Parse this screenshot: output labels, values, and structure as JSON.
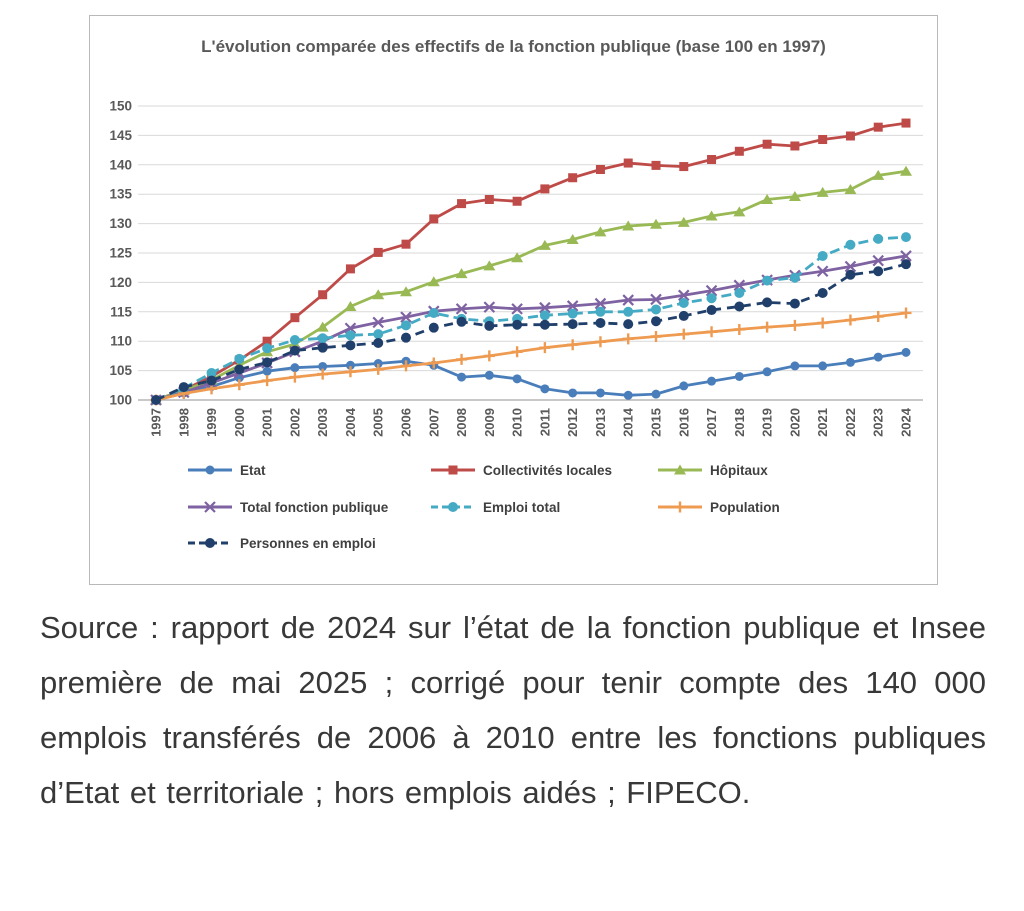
{
  "chart_data": {
    "type": "line",
    "title": "L'évolution comparée des effectifs de la fonction publique (base 100 en 1997)",
    "x": [
      1997,
      1998,
      1999,
      2000,
      2001,
      2002,
      2003,
      2004,
      2005,
      2006,
      2007,
      2008,
      2009,
      2010,
      2011,
      2012,
      2013,
      2014,
      2015,
      2016,
      2017,
      2018,
      2019,
      2020,
      2021,
      2022,
      2023,
      2024
    ],
    "ylim": [
      100,
      150
    ],
    "y_ticks": [
      100,
      105,
      110,
      115,
      120,
      125,
      130,
      135,
      140,
      145,
      150
    ],
    "grid": true,
    "legend_position": "bottom",
    "series": [
      {
        "id": "etat",
        "name": "Etat",
        "color": "#4a7ebb",
        "marker": "circle",
        "dash": null,
        "values": [
          100,
          101.2,
          102.3,
          103.8,
          104.9,
          105.5,
          105.7,
          105.9,
          106.2,
          106.6,
          105.9,
          103.9,
          104.2,
          103.6,
          101.9,
          101.2,
          101.2,
          100.8,
          101.0,
          102.4,
          103.2,
          104.0,
          104.8,
          105.8,
          105.8,
          106.4,
          107.3,
          108.1
        ]
      },
      {
        "id": "collectivites-locales",
        "name": "Collectivités locales",
        "color": "#be4b48",
        "marker": "square",
        "dash": null,
        "values": [
          100,
          101.7,
          104.0,
          106.8,
          110.0,
          114.0,
          117.9,
          122.3,
          125.1,
          126.5,
          130.8,
          133.4,
          134.1,
          133.8,
          135.9,
          137.8,
          139.2,
          140.3,
          139.9,
          139.7,
          140.9,
          142.3,
          143.5,
          143.2,
          144.3,
          144.9,
          146.4,
          147.1
        ]
      },
      {
        "id": "hopitaux",
        "name": "Hôpitaux",
        "color": "#98b954",
        "marker": "triangle",
        "dash": null,
        "values": [
          100,
          101.6,
          103.4,
          105.9,
          108.2,
          109.5,
          112.4,
          115.9,
          117.9,
          118.4,
          120.1,
          121.5,
          122.8,
          124.2,
          126.3,
          127.3,
          128.6,
          129.6,
          129.9,
          130.2,
          131.3,
          132.0,
          134.1,
          134.6,
          135.3,
          135.8,
          138.2,
          138.9
        ]
      },
      {
        "id": "total-fonction-publique",
        "name": "Total fonction publique",
        "color": "#7e62a1",
        "marker": "x",
        "dash": null,
        "values": [
          100,
          101.3,
          102.9,
          104.6,
          106.3,
          108.2,
          110.0,
          112.2,
          113.2,
          114.1,
          115.1,
          115.5,
          115.8,
          115.5,
          115.7,
          116.0,
          116.4,
          117.0,
          117.1,
          117.8,
          118.6,
          119.5,
          120.4,
          121.2,
          121.9,
          122.7,
          123.7,
          124.5
        ]
      },
      {
        "id": "emploi-total",
        "name": "Emploi total",
        "color": "#45aac4",
        "marker": "circle",
        "dash": "10,5",
        "values": [
          100,
          102.0,
          104.6,
          107.0,
          108.8,
          110.2,
          110.5,
          111.0,
          111.2,
          112.7,
          114.8,
          113.8,
          113.4,
          113.8,
          114.4,
          114.7,
          115.0,
          115.0,
          115.4,
          116.5,
          117.3,
          118.2,
          120.3,
          120.8,
          124.5,
          126.4,
          127.4,
          127.7
        ]
      },
      {
        "id": "population",
        "name": "Population",
        "color": "#ee9b51",
        "marker": "plus",
        "dash": null,
        "values": [
          100,
          101.1,
          101.9,
          102.6,
          103.3,
          103.9,
          104.4,
          104.8,
          105.2,
          105.8,
          106.3,
          106.9,
          107.5,
          108.2,
          108.9,
          109.4,
          109.9,
          110.4,
          110.8,
          111.2,
          111.6,
          112.0,
          112.4,
          112.7,
          113.1,
          113.6,
          114.2,
          114.8
        ]
      },
      {
        "id": "personnes-en-emploi",
        "name": "Personnes en emploi",
        "color": "#20406b",
        "marker": "circle",
        "dash": "9,6",
        "values": [
          100,
          102.2,
          103.3,
          105.2,
          106.4,
          108.4,
          108.9,
          109.3,
          109.7,
          110.6,
          112.3,
          113.3,
          112.6,
          112.8,
          112.8,
          112.9,
          113.1,
          112.9,
          113.4,
          114.3,
          115.3,
          115.9,
          116.6,
          116.4,
          118.2,
          121.3,
          121.9,
          123.1
        ]
      }
    ],
    "colors": {
      "gridline": "#d9d9d9",
      "axis_line": "#a6a6a6",
      "axis_text": "#595959",
      "title_text": "#595959",
      "legend_text": "#404040",
      "panel_border": "#b9b9b9"
    }
  },
  "source": {
    "text": "Source : rapport de 2024 sur l’état de la fonction publique et Insee première de mai 2025 ; corrigé pour tenir compte des 140 000 emplois transférés de 2006 à 2010 entre les fonctions publiques d’Etat et territoriale ; hors emplois aidés ; FIPECO."
  }
}
